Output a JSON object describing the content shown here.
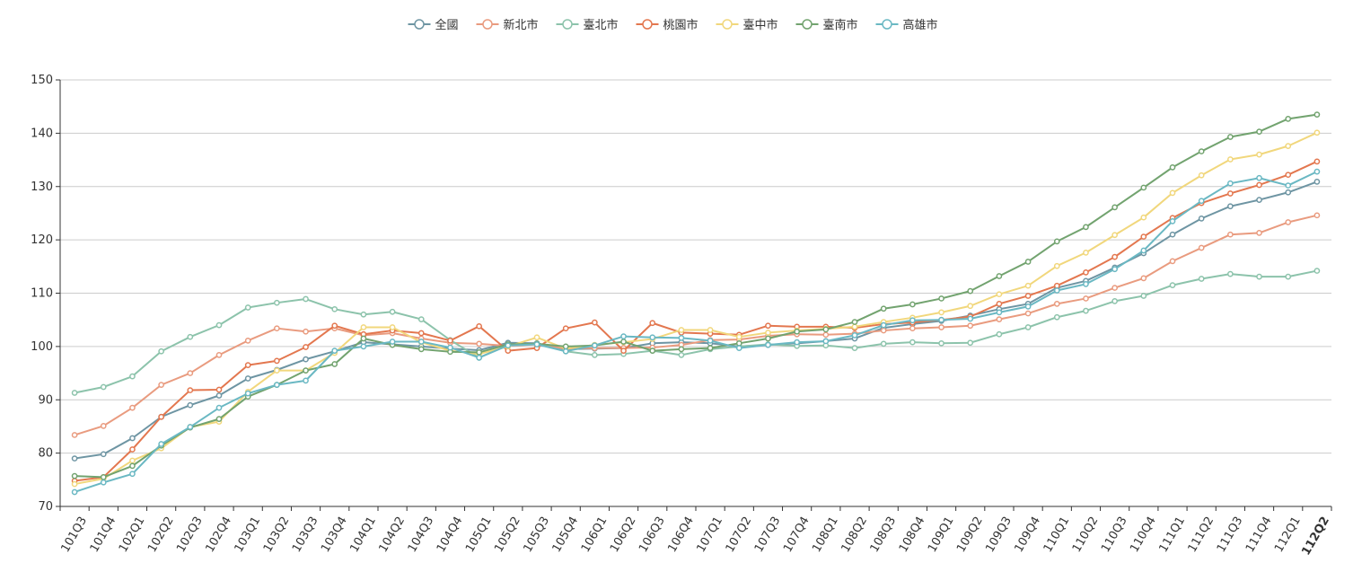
{
  "chart_data": {
    "type": "line",
    "ylim": [
      70,
      150
    ],
    "yticks": [
      70,
      80,
      90,
      100,
      110,
      120,
      130,
      140,
      150
    ],
    "grid": true,
    "legend": "top-center",
    "categories": [
      "101Q3",
      "101Q4",
      "102Q1",
      "102Q2",
      "102Q3",
      "102Q4",
      "103Q1",
      "103Q2",
      "103Q3",
      "103Q4",
      "104Q1",
      "104Q2",
      "104Q3",
      "104Q4",
      "105Q1",
      "105Q2",
      "105Q3",
      "105Q4",
      "106Q1",
      "106Q2",
      "106Q3",
      "106Q4",
      "107Q1",
      "107Q2",
      "107Q3",
      "107Q4",
      "108Q1",
      "108Q2",
      "108Q3",
      "108Q4",
      "109Q1",
      "109Q2",
      "109Q3",
      "109Q4",
      "110Q1",
      "110Q2",
      "110Q3",
      "110Q4",
      "111Q1",
      "111Q2",
      "111Q3",
      "111Q4",
      "112Q1",
      "112Q2"
    ],
    "highlight_category": "112Q2",
    "series": [
      {
        "name": "全國",
        "color": "#6e95a3",
        "values": [
          79.0,
          79.8,
          82.8,
          86.8,
          89.0,
          90.8,
          94.0,
          95.6,
          97.6,
          99.1,
          100.8,
          100.4,
          100.0,
          99.6,
          99.3,
          100.7,
          100.6,
          99.5,
          99.6,
          99.7,
          100.6,
          100.8,
          100.6,
          100.0,
          100.3,
          100.6,
          101.0,
          101.5,
          103.5,
          104.2,
          104.8,
          105.8,
          107.0,
          108.0,
          111.0,
          112.3,
          114.8,
          117.5,
          121.0,
          124.0,
          126.3,
          127.5,
          128.9,
          130.9
        ]
      },
      {
        "name": "新北市",
        "color": "#e99b7f",
        "values": [
          83.4,
          85.1,
          88.5,
          92.8,
          95.0,
          98.4,
          101.1,
          103.4,
          102.8,
          103.4,
          102.1,
          102.5,
          101.5,
          100.7,
          100.5,
          100.1,
          100.4,
          99.6,
          99.7,
          99.7,
          99.8,
          100.3,
          101.2,
          101.3,
          102.0,
          102.3,
          102.2,
          102.4,
          103.0,
          103.4,
          103.6,
          103.9,
          105.1,
          106.2,
          108.0,
          109.0,
          111.0,
          112.8,
          116.0,
          118.5,
          121.0,
          121.3,
          123.3,
          124.6
        ]
      },
      {
        "name": "臺北市",
        "color": "#8cc3ab",
        "values": [
          91.3,
          92.4,
          94.4,
          99.1,
          101.8,
          104.0,
          107.3,
          108.2,
          108.9,
          107.0,
          106.0,
          106.5,
          105.1,
          101.2,
          97.9,
          100.3,
          100.5,
          99.1,
          98.4,
          98.6,
          99.2,
          98.4,
          99.5,
          100.0,
          100.4,
          100.1,
          100.2,
          99.7,
          100.5,
          100.8,
          100.6,
          100.7,
          102.3,
          103.6,
          105.5,
          106.7,
          108.5,
          109.5,
          111.5,
          112.7,
          113.6,
          113.1,
          113.1,
          114.2
        ]
      },
      {
        "name": "桃園市",
        "color": "#e3774f",
        "values": [
          74.8,
          75.5,
          80.7,
          86.8,
          91.8,
          91.9,
          96.5,
          97.3,
          99.9,
          103.9,
          102.3,
          103.0,
          102.5,
          101.1,
          103.8,
          99.2,
          99.7,
          103.4,
          104.5,
          99.2,
          104.4,
          102.6,
          102.4,
          102.2,
          103.9,
          103.7,
          103.7,
          103.5,
          104.2,
          104.5,
          105.0,
          105.6,
          108.0,
          109.5,
          111.4,
          113.9,
          116.8,
          120.6,
          124.1,
          126.9,
          128.7,
          130.3,
          132.2,
          134.7
        ]
      },
      {
        "name": "臺中市",
        "color": "#f1d77c",
        "values": [
          74.2,
          75.2,
          78.6,
          80.9,
          84.9,
          85.9,
          91.5,
          95.5,
          95.5,
          98.8,
          103.6,
          103.6,
          100.8,
          99.2,
          98.6,
          100.0,
          101.7,
          99.6,
          100.3,
          100.8,
          101.4,
          103.1,
          103.1,
          101.8,
          102.6,
          103.0,
          103.3,
          103.7,
          104.6,
          105.4,
          106.4,
          107.6,
          109.8,
          111.4,
          115.1,
          117.6,
          120.9,
          124.2,
          128.8,
          132.1,
          135.1,
          136.0,
          137.6,
          140.1
        ]
      },
      {
        "name": "臺南市",
        "color": "#72a36f",
        "values": [
          75.7,
          75.5,
          77.6,
          81.4,
          84.8,
          86.4,
          90.6,
          92.8,
          95.5,
          96.7,
          101.5,
          100.3,
          99.5,
          99.0,
          98.9,
          100.4,
          100.5,
          100.0,
          100.2,
          100.9,
          99.2,
          99.5,
          99.7,
          100.6,
          101.5,
          102.8,
          103.2,
          104.6,
          107.1,
          107.9,
          109.0,
          110.4,
          113.2,
          115.9,
          119.7,
          122.4,
          126.1,
          129.8,
          133.6,
          136.6,
          139.3,
          140.3,
          142.7,
          143.5
        ]
      },
      {
        "name": "高雄市",
        "color": "#6ab8c3",
        "values": [
          72.7,
          74.5,
          76.1,
          81.7,
          84.9,
          88.5,
          91.2,
          92.8,
          93.6,
          99.2,
          100.0,
          100.9,
          100.9,
          99.8,
          97.9,
          100.2,
          100.4,
          99.1,
          100.2,
          101.9,
          101.7,
          101.6,
          101.1,
          99.7,
          100.3,
          100.8,
          101.0,
          102.1,
          104.0,
          104.9,
          105.0,
          105.2,
          106.4,
          107.5,
          110.5,
          111.7,
          114.5,
          118.0,
          123.5,
          127.3,
          130.6,
          131.6,
          130.2,
          132.8
        ]
      }
    ]
  }
}
